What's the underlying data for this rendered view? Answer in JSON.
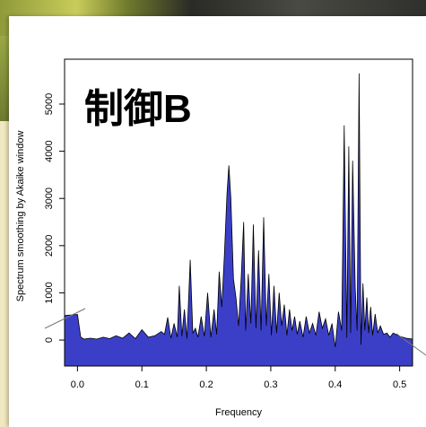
{
  "chart_data": {
    "type": "area",
    "title": "制御B",
    "xlabel": "Frequency",
    "ylabel": "Spectrum smoothing by  Akaike  window",
    "xlim": [
      -0.02,
      0.52
    ],
    "ylim": [
      -550,
      5950
    ],
    "x_ticks": [
      0.0,
      0.1,
      0.2,
      0.3,
      0.4,
      0.5
    ],
    "x_tick_labels": [
      "0.0",
      "0.1",
      "0.2",
      "0.3",
      "0.4",
      "0.5"
    ],
    "y_ticks": [
      0,
      1000,
      2000,
      3000,
      4000,
      5000
    ],
    "y_tick_labels": [
      "0",
      "1000",
      "2000",
      "3000",
      "4000",
      "5000"
    ],
    "grid": false,
    "fill_color": "#3b3fc8",
    "series": [
      {
        "x": [
          -0.02,
          0.0,
          0.005,
          0.01,
          0.02,
          0.03,
          0.04,
          0.05,
          0.06,
          0.07,
          0.08,
          0.09,
          0.1,
          0.11,
          0.12,
          0.13,
          0.135,
          0.14,
          0.145,
          0.15,
          0.155,
          0.158,
          0.162,
          0.166,
          0.17,
          0.175,
          0.179,
          0.183,
          0.187,
          0.192,
          0.197,
          0.202,
          0.207,
          0.212,
          0.216,
          0.22,
          0.224,
          0.228,
          0.232,
          0.235,
          0.238,
          0.242,
          0.246,
          0.25,
          0.254,
          0.258,
          0.261,
          0.265,
          0.269,
          0.273,
          0.277,
          0.281,
          0.285,
          0.289,
          0.293,
          0.297,
          0.301,
          0.305,
          0.309,
          0.313,
          0.317,
          0.321,
          0.325,
          0.329,
          0.333,
          0.337,
          0.341,
          0.345,
          0.35,
          0.355,
          0.36,
          0.365,
          0.37,
          0.375,
          0.38,
          0.385,
          0.39,
          0.395,
          0.4,
          0.405,
          0.41,
          0.414,
          0.418,
          0.421,
          0.424,
          0.427,
          0.431,
          0.434,
          0.437,
          0.44,
          0.443,
          0.446,
          0.449,
          0.452,
          0.455,
          0.458,
          0.462,
          0.466,
          0.47,
          0.475,
          0.48,
          0.485,
          0.49,
          0.5,
          0.51,
          0.52
        ],
        "y": [
          520,
          540,
          60,
          20,
          40,
          20,
          60,
          30,
          90,
          40,
          150,
          30,
          220,
          60,
          90,
          180,
          120,
          480,
          40,
          350,
          60,
          1150,
          80,
          650,
          30,
          1700,
          150,
          250,
          60,
          500,
          80,
          1000,
          60,
          650,
          120,
          1450,
          700,
          1800,
          3100,
          3700,
          3000,
          1300,
          900,
          300,
          1300,
          2500,
          200,
          1400,
          350,
          2450,
          250,
          1900,
          200,
          2600,
          300,
          1400,
          100,
          1150,
          150,
          1000,
          300,
          750,
          100,
          650,
          200,
          500,
          120,
          400,
          60,
          500,
          150,
          350,
          100,
          600,
          250,
          450,
          100,
          350,
          -150,
          600,
          200,
          4550,
          50,
          4100,
          150,
          3800,
          1100,
          200,
          5650,
          -100,
          1200,
          200,
          900,
          150,
          700,
          100,
          550,
          150,
          300,
          120,
          150,
          60,
          150,
          80,
          40,
          20
        ]
      }
    ]
  }
}
